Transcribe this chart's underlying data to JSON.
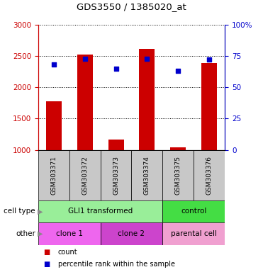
{
  "title": "GDS3550 / 1385020_at",
  "samples": [
    "GSM303371",
    "GSM303372",
    "GSM303373",
    "GSM303374",
    "GSM303375",
    "GSM303376"
  ],
  "counts": [
    1780,
    2520,
    1160,
    2610,
    1040,
    2390
  ],
  "percentile_ranks": [
    68,
    73,
    65,
    73,
    63,
    72
  ],
  "ylim_left": [
    1000,
    3000
  ],
  "ylim_right": [
    0,
    100
  ],
  "yticks_left": [
    1000,
    1500,
    2000,
    2500,
    3000
  ],
  "yticks_right": [
    0,
    25,
    50,
    75,
    100
  ],
  "bar_color": "#cc0000",
  "dot_color": "#0000cc",
  "left_axis_color": "#cc0000",
  "right_axis_color": "#0000cc",
  "cell_type_label": "cell type",
  "other_label": "other",
  "cell_type_groups": [
    {
      "label": "GLI1 transformed",
      "start": 0,
      "end": 4,
      "color": "#99ee99"
    },
    {
      "label": "control",
      "start": 4,
      "end": 6,
      "color": "#44dd44"
    }
  ],
  "other_groups": [
    {
      "label": "clone 1",
      "start": 0,
      "end": 2,
      "color": "#ee66ee"
    },
    {
      "label": "clone 2",
      "start": 2,
      "end": 4,
      "color": "#cc44cc"
    },
    {
      "label": "parental cell",
      "start": 4,
      "end": 6,
      "color": "#f0a0d0"
    }
  ],
  "legend_count_label": "count",
  "legend_percentile_label": "percentile rank within the sample",
  "background_color": "#ffffff",
  "xticklabel_bg": "#c8c8c8"
}
